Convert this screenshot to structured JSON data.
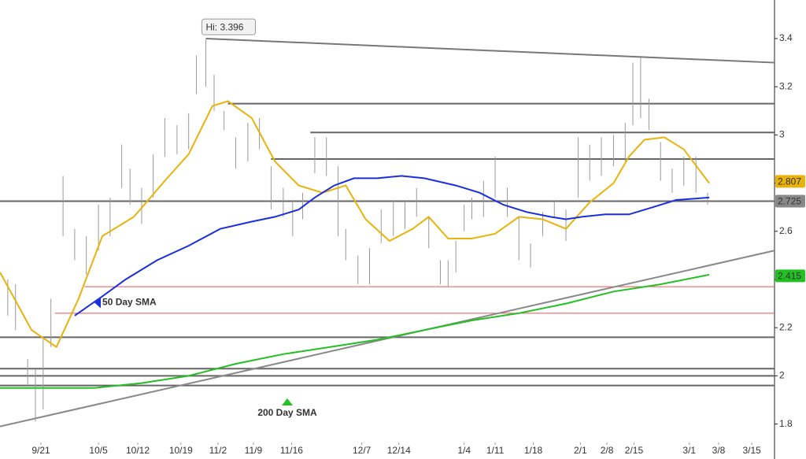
{
  "chart_data": {
    "type": "price",
    "xlim": [
      0,
      140
    ],
    "ylim": [
      1.73,
      3.56
    ],
    "yticks": [
      1.8,
      2,
      2.2,
      2.4,
      2.6,
      2.8,
      3,
      3.2,
      3.4
    ],
    "xticks": [
      {
        "value": 7.4,
        "label": "9/21"
      },
      {
        "value": 17.8,
        "label": "10/5"
      },
      {
        "value": 24.9,
        "label": "10/12"
      },
      {
        "value": 32.7,
        "label": "10/19"
      },
      {
        "value": 39.4,
        "label": "11/2"
      },
      {
        "value": 45.8,
        "label": "11/9"
      },
      {
        "value": 52.7,
        "label": "11/16"
      },
      {
        "value": 65.4,
        "label": "12/7"
      },
      {
        "value": 72.1,
        "label": "12/14"
      },
      {
        "value": 83.9,
        "label": "1/4"
      },
      {
        "value": 89.5,
        "label": "1/11"
      },
      {
        "value": 96.4,
        "label": "1/18"
      },
      {
        "value": 104.9,
        "label": "2/1"
      },
      {
        "value": 109.7,
        "label": "2/8"
      },
      {
        "value": 114.6,
        "label": "2/15"
      },
      {
        "value": 124.6,
        "label": "3/1"
      },
      {
        "value": 129.9,
        "label": "3/8"
      },
      {
        "value": 135.9,
        "label": "3/15"
      }
    ],
    "bars": {
      "color": "#999999",
      "x": [
        1.4,
        2.8,
        5.0,
        6.4,
        7.8,
        9.2,
        11.4,
        13.5,
        15.6,
        17.8,
        19.9,
        22.0,
        23.5,
        25.6,
        27.7,
        29.8,
        32.0,
        34.1,
        35.5,
        37.2,
        38.7,
        40.5,
        42.6,
        44.8,
        46.9,
        49.0,
        51.2,
        52.9,
        54.7,
        56.9,
        59.0,
        61.1,
        62.5,
        64.7,
        66.8,
        68.9,
        71.1,
        73.2,
        75.3,
        77.5,
        79.6,
        81.0,
        82.4,
        83.9,
        85.3,
        87.4,
        89.5,
        91.7,
        93.8,
        95.9,
        98.1,
        100.2,
        102.3,
        104.5,
        106.6,
        108.7,
        110.9,
        113.0,
        114.4,
        115.8,
        117.3,
        119.4,
        121.5,
        123.6,
        125.8,
        127.9
      ],
      "high": [
        2.4,
        2.38,
        2.07,
        2.03,
        2.16,
        2.32,
        2.83,
        2.61,
        2.58,
        2.71,
        2.74,
        2.96,
        2.86,
        2.78,
        2.92,
        3.07,
        3.04,
        3.09,
        3.33,
        3.396,
        3.25,
        3.1,
        2.99,
        3.05,
        3.07,
        2.87,
        2.78,
        2.73,
        2.76,
        2.99,
        2.99,
        2.87,
        2.61,
        2.5,
        2.53,
        2.69,
        2.73,
        2.73,
        2.78,
        2.66,
        2.48,
        2.48,
        2.56,
        2.71,
        2.74,
        2.81,
        2.91,
        2.78,
        2.66,
        2.55,
        2.68,
        2.73,
        2.69,
        2.99,
        2.96,
        2.99,
        3.0,
        3.05,
        3.3,
        3.32,
        3.15,
        2.97,
        2.86,
        2.91,
        2.91,
        2.76
      ],
      "low": [
        2.25,
        2.19,
        1.96,
        1.81,
        1.86,
        2.12,
        2.58,
        2.48,
        2.42,
        2.52,
        2.58,
        2.78,
        2.71,
        2.63,
        2.74,
        2.91,
        2.92,
        2.94,
        3.17,
        3.2,
        3.1,
        3.02,
        2.86,
        2.89,
        2.94,
        2.69,
        2.66,
        2.58,
        2.65,
        2.84,
        2.83,
        2.58,
        2.48,
        2.38,
        2.38,
        2.55,
        2.58,
        2.61,
        2.66,
        2.53,
        2.38,
        2.37,
        2.43,
        2.6,
        2.65,
        2.66,
        2.74,
        2.66,
        2.48,
        2.45,
        2.58,
        2.66,
        2.56,
        2.74,
        2.81,
        2.83,
        2.87,
        2.89,
        3.04,
        3.07,
        3.02,
        2.81,
        2.76,
        2.79,
        2.76,
        2.71
      ]
    },
    "series": [
      {
        "color": "#e8b30c",
        "x": [
          0,
          5.7,
          10.2,
          14.2,
          18.5,
          24.2,
          29.8,
          34.1,
          38.4,
          41.2,
          45.5,
          49.7,
          54.0,
          58.3,
          62.5,
          66.1,
          70.4,
          74.6,
          77.5,
          81.0,
          85.3,
          89.5,
          93.8,
          98.1,
          102.3,
          106.6,
          110.9,
          113.7,
          116.5,
          120.1,
          123.6,
          128.2
        ],
        "values": [
          2.43,
          2.19,
          2.12,
          2.32,
          2.58,
          2.66,
          2.81,
          2.92,
          3.12,
          3.14,
          3.07,
          2.89,
          2.79,
          2.76,
          2.79,
          2.65,
          2.56,
          2.61,
          2.66,
          2.57,
          2.57,
          2.59,
          2.66,
          2.65,
          2.61,
          2.72,
          2.8,
          2.91,
          2.98,
          2.99,
          2.94,
          2.8
        ],
        "tag": 2.807
      },
      {
        "name": "50 Day SMA",
        "color": "#1a2ee0",
        "x": [
          13.5,
          18.5,
          22.7,
          28.4,
          34.1,
          39.8,
          45.5,
          49.7,
          54.0,
          56.9,
          60.4,
          64.0,
          68.2,
          72.5,
          76.7,
          82.4,
          86.7,
          91.0,
          95.2,
          99.5,
          102.3,
          105.2,
          109.4,
          113.7,
          118.0,
          122.2,
          128.2
        ],
        "values": [
          2.25,
          2.33,
          2.4,
          2.48,
          2.54,
          2.61,
          2.64,
          2.66,
          2.69,
          2.74,
          2.79,
          2.82,
          2.82,
          2.83,
          2.82,
          2.79,
          2.76,
          2.71,
          2.68,
          2.66,
          2.65,
          2.66,
          2.67,
          2.67,
          2.7,
          2.73,
          2.74
        ]
      },
      {
        "name": "200 Day SMA",
        "color": "#22c022",
        "x": [
          0,
          8.5,
          17.1,
          25.6,
          34.1,
          42.6,
          51.2,
          59.7,
          68.2,
          76.7,
          85.3,
          93.8,
          102.3,
          110.9,
          119.4,
          128.2
        ],
        "values": [
          1.95,
          1.95,
          1.95,
          1.97,
          2.0,
          2.05,
          2.09,
          2.12,
          2.15,
          2.19,
          2.23,
          2.26,
          2.3,
          2.35,
          2.38,
          2.42
        ],
        "tag": 2.415
      }
    ],
    "levels": [
      {
        "value": 3.13,
        "from": 41.2,
        "color": "#666666"
      },
      {
        "value": 3.01,
        "from": 56.1,
        "color": "#666666"
      },
      {
        "value": 2.9,
        "from": 49.0,
        "color": "#666666"
      },
      {
        "value": 2.725,
        "from": 0,
        "color": "#666666",
        "tag": 2.725
      },
      {
        "value": 2.37,
        "from": 15.3,
        "color": "#f05050"
      },
      {
        "value": 2.26,
        "from": 9.9,
        "color": "#f05050"
      },
      {
        "value": 2.16,
        "from": 0,
        "color": "#666666"
      },
      {
        "value": 2.03,
        "from": 0,
        "color": "#666666"
      },
      {
        "value": 2.0,
        "from": 0,
        "color": "#666666"
      },
      {
        "value": 1.96,
        "from": 0,
        "color": "#666666"
      }
    ],
    "trendlines": [
      {
        "x": [
          37.2,
          140
        ],
        "values": [
          3.4,
          3.3
        ],
        "color": "#777777"
      },
      {
        "x": [
          0,
          140
        ],
        "values": [
          1.79,
          2.52
        ],
        "color": "#888888"
      }
    ],
    "high_label": "Hi: 3.396"
  }
}
